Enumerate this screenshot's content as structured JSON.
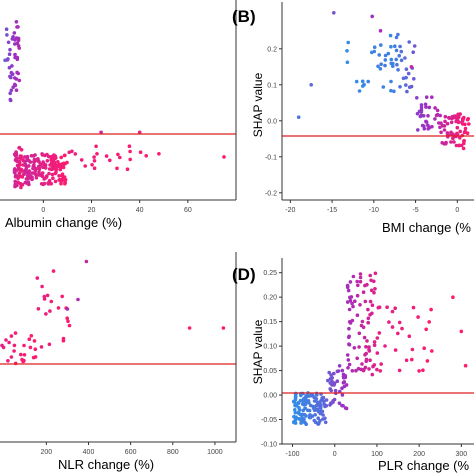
{
  "colors": {
    "low": "#2f8fe8",
    "mid": "#9b30c4",
    "high": "#ff1a6e",
    "zero_line": "#dd2222",
    "axis": "#333333"
  },
  "chart_data": [
    {
      "type": "scatter",
      "panel": "",
      "xlabel": "Albumin change (%)",
      "ylabel": "",
      "xticks": [
        "0",
        "20",
        "40",
        "60"
      ],
      "yticks": [],
      "xlim": [
        -18,
        80
      ],
      "ylim": [
        -0.2,
        0.45
      ],
      "zero_line": 0,
      "groups": [
        {
          "x_range": [
            -16,
            -10
          ],
          "y_range": [
            0.12,
            0.38
          ],
          "n": 45,
          "color_range": [
            0.3,
            0.6
          ],
          "seed": 1
        },
        {
          "x_range": [
            -12,
            -8
          ],
          "y_range": [
            -0.16,
            -0.03
          ],
          "n": 55,
          "color_range": [
            0.75,
            1.0
          ],
          "seed": 2
        },
        {
          "x_range": [
            -8,
            10
          ],
          "y_range": [
            -0.15,
            -0.05
          ],
          "n": 150,
          "color_range": [
            0.75,
            1.0
          ],
          "seed": 3
        },
        {
          "x_range": [
            10,
            45
          ],
          "y_range": [
            -0.1,
            -0.02
          ],
          "n": 22,
          "color_range": [
            0.9,
            1.0
          ],
          "seed": 4
        }
      ],
      "points": [
        [
          75,
          -0.06
        ],
        [
          48,
          -0.05
        ],
        [
          40,
          0.02
        ],
        [
          24,
          0.02
        ]
      ]
    },
    {
      "type": "scatter",
      "panel": "(B)",
      "xlabel": "BMI change (%",
      "ylabel": "SHAP value",
      "xticks": [
        "-20",
        "-15",
        "-10",
        "-5",
        "0"
      ],
      "yticks": [
        "-0.2",
        "-0.1",
        "0.0",
        "0.1",
        "0.2"
      ],
      "xlim": [
        -21,
        2
      ],
      "ylim": [
        -0.22,
        0.33
      ],
      "zero_line": 0,
      "groups": [
        {
          "x_range": [
            -14,
            -8
          ],
          "y_range": [
            0.08,
            0.22
          ],
          "n": 22,
          "color_range": [
            0.0,
            0.1
          ],
          "seed": 5
        },
        {
          "x_range": [
            -8,
            -5
          ],
          "y_range": [
            0.08,
            0.24
          ],
          "n": 35,
          "color_range": [
            0.05,
            0.3
          ],
          "seed": 6
        },
        {
          "x_range": [
            -5,
            -2
          ],
          "y_range": [
            -0.03,
            0.07
          ],
          "n": 35,
          "color_range": [
            0.4,
            0.65
          ],
          "seed": 7
        },
        {
          "x_range": [
            -2,
            1.5
          ],
          "y_range": [
            -0.08,
            0.02
          ],
          "n": 70,
          "color_range": [
            0.7,
            1.0
          ],
          "seed": 8
        }
      ],
      "points": [
        [
          -19,
          0.01
        ],
        [
          -17.5,
          0.1
        ],
        [
          -14.8,
          0.3
        ],
        [
          -10.2,
          0.29
        ],
        [
          -9.2,
          0.25
        ],
        [
          -5.5,
          0.15
        ]
      ]
    },
    {
      "type": "scatter",
      "panel": "",
      "xlabel": "NLR change (%)",
      "ylabel": "",
      "xticks": [
        "200",
        "400",
        "600",
        "800",
        "1000"
      ],
      "yticks": [],
      "xlim": [
        -20,
        1100
      ],
      "ylim": [
        -0.1,
        0.3
      ],
      "zero_line": 0,
      "groups": [
        {
          "x_range": [
            -15,
            150
          ],
          "y_range": [
            0.06,
            0.13
          ],
          "n": 25,
          "color_range": [
            0.88,
            1.0
          ],
          "seed": 9
        },
        {
          "x_range": [
            150,
            330
          ],
          "y_range": [
            0.1,
            0.26
          ],
          "n": 20,
          "color_range": [
            0.9,
            1.0
          ],
          "seed": 10
        }
      ],
      "points": [
        [
          390,
          0.28
        ],
        [
          880,
          0.14
        ],
        [
          1040,
          0.14
        ],
        [
          350,
          0.2
        ],
        [
          300,
          0.18
        ]
      ]
    },
    {
      "type": "scatter",
      "panel": "(D)",
      "xlabel": "PLR change (%",
      "ylabel": "SHAP value",
      "xticks": [
        "-100",
        "0",
        "100",
        "200",
        "300"
      ],
      "yticks": [
        "-0.10",
        "-0.05",
        "0.00",
        "0.05",
        "0.10",
        "0.15",
        "0.20",
        "0.25"
      ],
      "xlim": [
        -125,
        330
      ],
      "ylim": [
        -0.1,
        0.28
      ],
      "zero_line": 0,
      "groups": [
        {
          "x_range": [
            -100,
            -20
          ],
          "y_range": [
            -0.06,
            0.005
          ],
          "n": 120,
          "color_range": [
            0.0,
            0.22
          ],
          "seed": 11
        },
        {
          "x_range": [
            -20,
            30
          ],
          "y_range": [
            -0.03,
            0.06
          ],
          "n": 45,
          "color_range": [
            0.25,
            0.55
          ],
          "seed": 12
        },
        {
          "x_range": [
            30,
            110
          ],
          "y_range": [
            0.03,
            0.25
          ],
          "n": 90,
          "color_range": [
            0.55,
            0.9
          ],
          "seed": 13
        },
        {
          "x_range": [
            110,
            230
          ],
          "y_range": [
            0.04,
            0.18
          ],
          "n": 25,
          "color_range": [
            0.85,
            1.0
          ],
          "seed": 14
        }
      ],
      "points": [
        [
          230,
          0.09
        ],
        [
          300,
          0.13
        ],
        [
          280,
          0.2
        ],
        [
          310,
          0.06
        ]
      ]
    }
  ]
}
